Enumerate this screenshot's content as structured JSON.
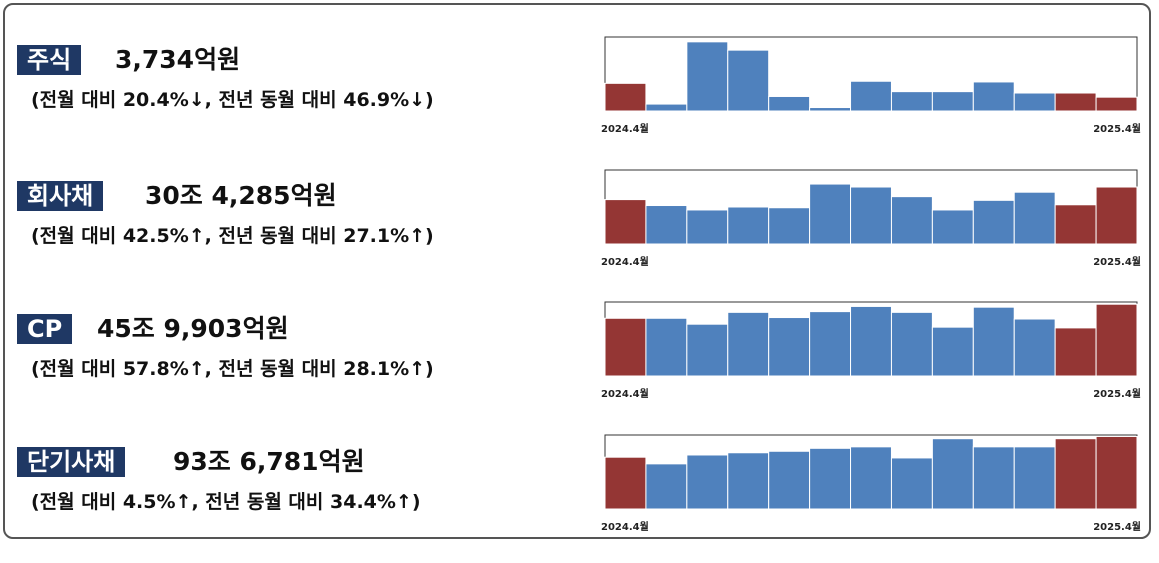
{
  "colors": {
    "highlight_bar": "#943634",
    "normal_bar": "#4f81bd",
    "label_bg": "#1f3864"
  },
  "panels": [
    {
      "label": "주식",
      "amount": "3,734억원",
      "comparison": "(전월 대비 20.4%↓, 전년 동월 대비 46.9%↓)"
    },
    {
      "label": "회사채",
      "amount": "30조 4,285억원",
      "comparison": "(전월 대비 42.5%↑, 전년 동월 대비 27.1%↑)"
    },
    {
      "label": "CP",
      "amount": "45조 9,903억원",
      "comparison": "(전월 대비 57.8%↑, 전년 동월 대비 28.1%↑)"
    },
    {
      "label": "단기사채",
      "amount": "93조 6,781억원",
      "comparison": "(전월 대비 4.5%↑, 전년 동월 대비 34.4%↑)"
    }
  ],
  "chart_data": [
    {
      "type": "bar",
      "x_start_label": "2024.4월",
      "x_end_label": "2025.4월",
      "values": [
        40,
        10,
        100,
        88,
        21,
        5,
        43,
        28,
        28,
        42,
        26,
        26,
        20
      ],
      "highlight": [
        0,
        11,
        12
      ],
      "ylim": [
        0,
        107
      ],
      "grid": false
    },
    {
      "type": "bar",
      "x_start_label": "2024.4월",
      "x_end_label": "2025.4월",
      "values": [
        60,
        52,
        46,
        50,
        49,
        81,
        77,
        64,
        46,
        59,
        70,
        53,
        77
      ],
      "highlight": [
        0,
        11,
        12
      ],
      "ylim": [
        0,
        100
      ],
      "grid": false
    },
    {
      "type": "bar",
      "x_start_label": "2024.4월",
      "x_end_label": "2025.4월",
      "values": [
        78,
        78,
        70,
        86,
        79,
        87,
        94,
        86,
        66,
        93,
        77,
        65,
        97
      ],
      "highlight": [
        0,
        11,
        12
      ],
      "ylim": [
        0,
        100
      ],
      "grid": false
    },
    {
      "type": "bar",
      "x_start_label": "2024.4월",
      "x_end_label": "2025.4월",
      "values": [
        70,
        61,
        73,
        76,
        78,
        82,
        84,
        69,
        95,
        84,
        84,
        95,
        98
      ],
      "highlight": [
        0,
        11,
        12
      ],
      "ylim": [
        0,
        100
      ],
      "grid": false
    }
  ]
}
